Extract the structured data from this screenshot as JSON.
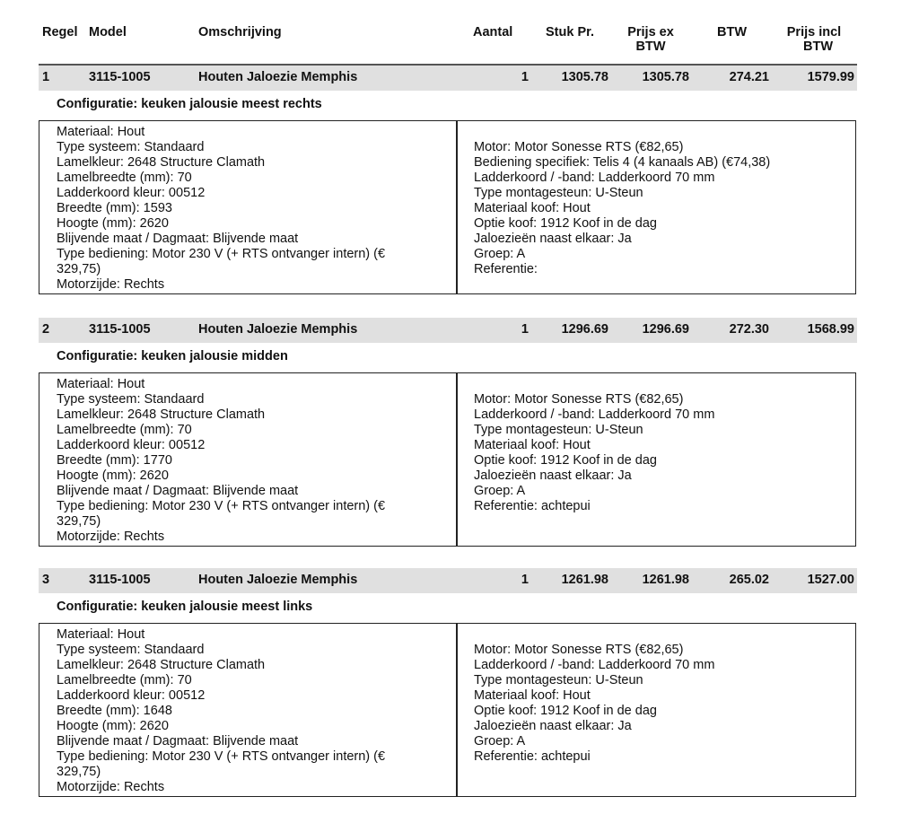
{
  "header": {
    "regel": "Regel",
    "model": "Model",
    "omschrijving": "Omschrijving",
    "aantal": "Aantal",
    "stuk_pr": "Stuk Pr.",
    "prijs_ex_1": "Prijs ex",
    "prijs_ex_2": "BTW",
    "btw": "BTW",
    "prijs_incl_1": "Prijs incl",
    "prijs_incl_2": "BTW"
  },
  "lines": [
    {
      "regel": "1",
      "model": "3115-1005",
      "omschrijving": "Houten Jaloezie Memphis",
      "aantal": "1",
      "stuk_pr": "1305.78",
      "prijs_ex": "1305.78",
      "btw": "274.21",
      "prijs_incl": "1579.99",
      "configuratie": "Configuratie: keuken jalousie meest rechts",
      "left": [
        "Materiaal: Hout",
        "Type systeem: Standaard",
        "Lamelkleur: 2648  Structure  Clamath",
        "Lamelbreedte (mm): 70",
        "Ladderkoord kleur: 00512",
        "Breedte (mm): 1593",
        "Hoogte (mm): 2620",
        "Blijvende maat / Dagmaat: Blijvende maat",
        "Type bediening: Motor 230 V (+ RTS ontvanger intern) (€",
        "329,75)",
        "Motorzijde: Rechts"
      ],
      "right": [
        "Motor: Motor Sonesse RTS (€82,65)",
        "Bediening specifiek: Telis 4 (4 kanaals AB) (€74,38)",
        "Ladderkoord / -band: Ladderkoord 70 mm",
        "Type montagesteun: U-Steun",
        "Materiaal koof: Hout",
        "Optie koof: 1912 Koof in de dag",
        "Jaloezieën naast elkaar: Ja",
        "Groep: A",
        "Referentie:"
      ]
    },
    {
      "regel": "2",
      "model": "3115-1005",
      "omschrijving": "Houten Jaloezie Memphis",
      "aantal": "1",
      "stuk_pr": "1296.69",
      "prijs_ex": "1296.69",
      "btw": "272.30",
      "prijs_incl": "1568.99",
      "configuratie": "Configuratie: keuken jalousie midden",
      "left": [
        "Materiaal: Hout",
        "Type systeem: Standaard",
        "Lamelkleur: 2648  Structure  Clamath",
        "Lamelbreedte (mm): 70",
        "Ladderkoord kleur: 00512",
        "Breedte (mm): 1770",
        "Hoogte (mm): 2620",
        "Blijvende maat / Dagmaat: Blijvende maat",
        "Type bediening: Motor 230 V (+ RTS ontvanger intern) (€",
        "329,75)",
        "Motorzijde: Rechts"
      ],
      "right": [
        "Motor: Motor Sonesse RTS (€82,65)",
        "Ladderkoord / -band: Ladderkoord 70 mm",
        "Type montagesteun: U-Steun",
        "Materiaal koof: Hout",
        "Optie koof: 1912 Koof in de dag",
        "Jaloezieën naast elkaar: Ja",
        "Groep: A",
        "Referentie: achtepui"
      ]
    },
    {
      "regel": "3",
      "model": "3115-1005",
      "omschrijving": "Houten Jaloezie Memphis",
      "aantal": "1",
      "stuk_pr": "1261.98",
      "prijs_ex": "1261.98",
      "btw": "265.02",
      "prijs_incl": "1527.00",
      "configuratie": "Configuratie: keuken jalousie meest links",
      "left": [
        "Materiaal: Hout",
        "Type systeem: Standaard",
        "Lamelkleur: 2648  Structure  Clamath",
        "Lamelbreedte (mm): 70",
        "Ladderkoord kleur: 00512",
        "Breedte (mm): 1648",
        "Hoogte (mm): 2620",
        "Blijvende maat / Dagmaat: Blijvende maat",
        "Type bediening: Motor 230 V (+ RTS ontvanger intern) (€",
        "329,75)",
        "Motorzijde: Rechts"
      ],
      "right": [
        "Motor: Motor Sonesse RTS (€82,65)",
        "Ladderkoord / -band: Ladderkoord 70 mm",
        "Type montagesteun: U-Steun",
        "Materiaal koof: Hout",
        "Optie koof: 1912 Koof in de dag",
        "Jaloezieën naast elkaar: Ja",
        "Groep: A",
        "Referentie: achtepui"
      ]
    }
  ]
}
